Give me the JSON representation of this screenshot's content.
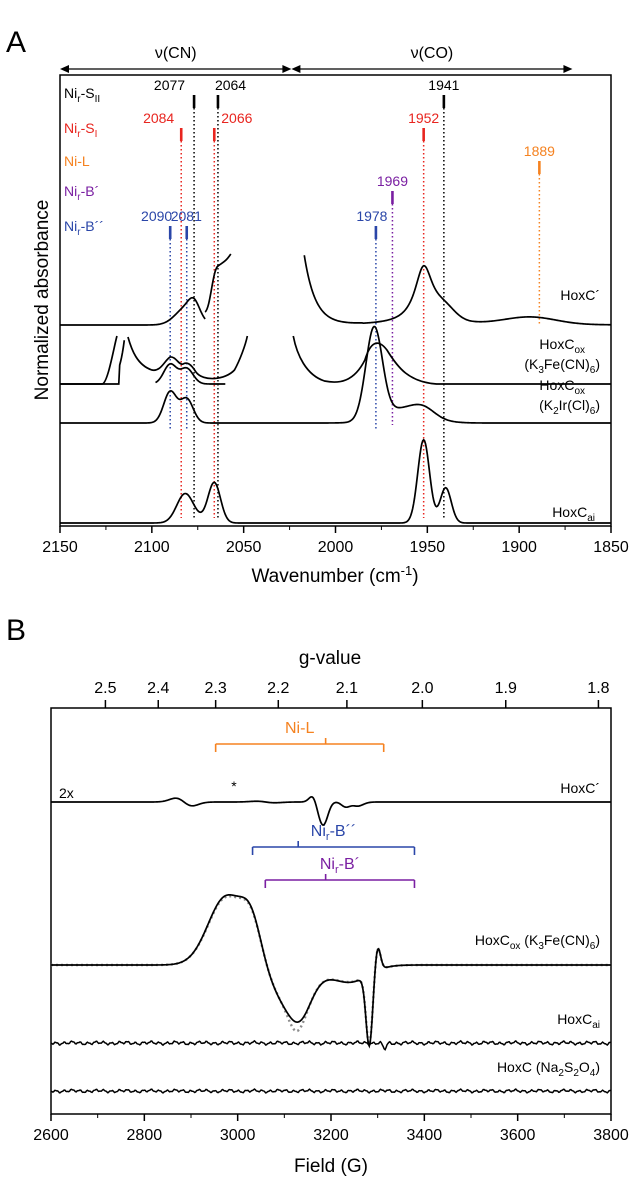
{
  "colors": {
    "black": "#000000",
    "red": "#e8251f",
    "orange": "#f58220",
    "purple": "#7a1fa2",
    "blue": "#2a46a8",
    "dotted_sim": "#8c8c8c"
  },
  "chart_data": [
    {
      "panel": "A",
      "type": "line",
      "xlabel": "Wavenumber (cm",
      "xlabel_sup": "-1",
      "xlabel_end": ")",
      "ylabel": "Normalized absorbance",
      "xlim": [
        2150,
        1850
      ],
      "xticks": [
        2150,
        2100,
        2050,
        2000,
        1950,
        1900,
        1850
      ],
      "regions": [
        {
          "label": "ν(CN)",
          "from": 2150,
          "to": 2024
        },
        {
          "label": "ν(CO)",
          "from": 2024,
          "to": 1871
        }
      ],
      "states": [
        {
          "label": "Ni",
          "sub": "r",
          "suffix": "-S",
          "sub2": "II",
          "color": "black",
          "bands": [
            2077,
            2064,
            1941
          ]
        },
        {
          "label": "Ni",
          "sub": "r",
          "suffix": "-S",
          "sub2": "I",
          "color": "red",
          "bands": [
            2084,
            2066,
            1952
          ]
        },
        {
          "label": "Ni-L",
          "sub": "",
          "suffix": "",
          "sub2": "",
          "color": "orange",
          "bands": [
            1889
          ]
        },
        {
          "label": "Ni",
          "sub": "r",
          "suffix": "-B´",
          "sub2": "",
          "color": "purple",
          "bands": [
            1969
          ]
        },
        {
          "label": "Ni",
          "sub": "r",
          "suffix": "-B´´",
          "sub2": "",
          "color": "blue",
          "bands": [
            2090,
            2081,
            1978
          ]
        }
      ],
      "band_label_text": {
        "b2077": "2077",
        "b2064": "2064",
        "b1941": "1941",
        "b2084": "2084",
        "b2066": "2066",
        "b1952": "1952",
        "b1889": "1889",
        "b1969": "1969",
        "b2090": "2090",
        "b2081": "2081",
        "b1978": "1978"
      },
      "traces": [
        {
          "name": "HoxC´",
          "sub": "",
          "suffix": ""
        },
        {
          "name": "HoxC",
          "sub": "ox",
          "suffix_line2": "(K",
          "s1": "3",
          "mid": "Fe(CN)",
          "s2": "6",
          "end": ")"
        },
        {
          "name": "HoxC",
          "sub": "ox",
          "suffix_line2": "(K",
          "s1": "2",
          "mid": "Ir(Cl)",
          "s2": "6",
          "end": ")"
        },
        {
          "name": "HoxC",
          "sub": "ai",
          "suffix": ""
        }
      ]
    },
    {
      "panel": "B",
      "type": "line",
      "xlabel": "Field (G)",
      "x2label": "g-value",
      "xlim": [
        2600,
        3800
      ],
      "xticks": [
        2600,
        2800,
        3000,
        3200,
        3400,
        3600,
        3800
      ],
      "gticks": [
        2.5,
        2.4,
        2.3,
        2.2,
        2.1,
        2.0,
        1.9,
        1.8
      ],
      "gtick_labels": [
        "2.5",
        "2.4",
        "2.3",
        "2.2",
        "2.1",
        "2.0",
        "1.9",
        "1.8"
      ],
      "scale_label": "2x",
      "asterisk": "*",
      "brackets": [
        {
          "label": "Ni-L",
          "sub": "",
          "suffix": "",
          "color": "orange",
          "g": [
            2.3,
            2.13,
            2.05
          ]
        },
        {
          "label": "Ni",
          "sub": "r",
          "suffix": "-B´´",
          "color": "blue",
          "g": [
            2.24,
            2.17,
            2.01
          ]
        },
        {
          "label": "Ni",
          "sub": "r",
          "suffix": "-B´",
          "color": "purple",
          "g": [
            2.22,
            2.13,
            2.01
          ]
        }
      ],
      "traces": [
        {
          "name": "HoxC´"
        },
        {
          "name": "HoxC",
          "sub": "ox",
          "paren": " (K",
          "s1": "3",
          "mid": "Fe(CN)",
          "s2": "6",
          "end": ")"
        },
        {
          "name": "HoxC",
          "sub": "ai"
        },
        {
          "name": "HoxC (Na",
          "s1": "2",
          "mid": "S",
          "s2": "2",
          "mid2": "O",
          "s3": "4",
          "end": ")"
        }
      ]
    }
  ],
  "panel_labels": {
    "a": "A",
    "b": "B"
  }
}
